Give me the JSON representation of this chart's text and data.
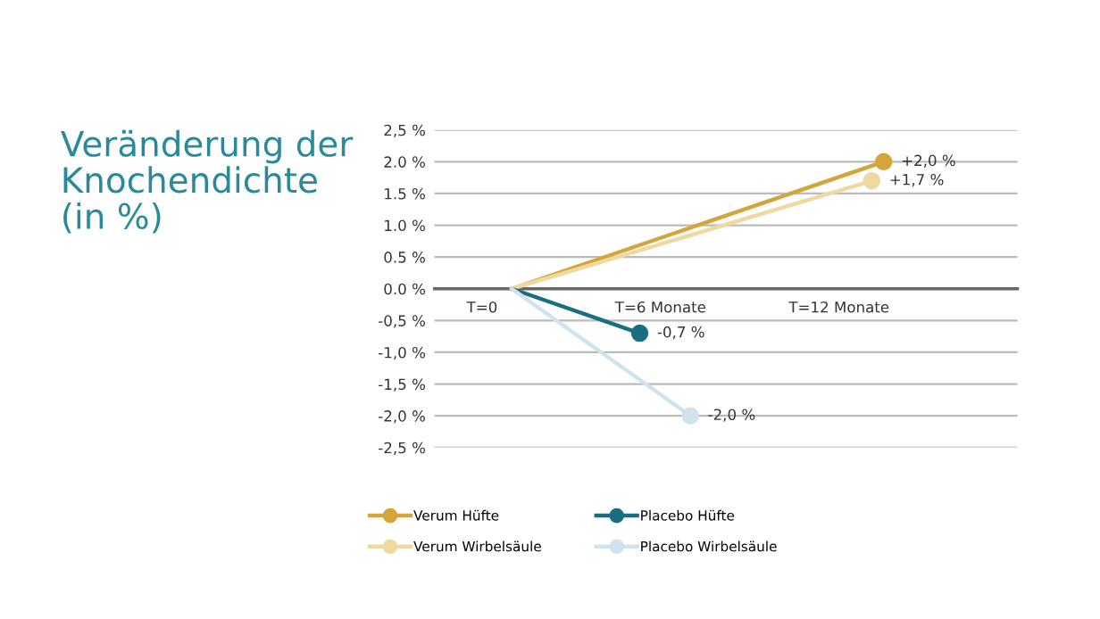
{
  "chart_data": {
    "type": "line",
    "title": "Veränderung der\nKnochendichte\n(in %)",
    "series": [
      {
        "name": "Verum Hüfte",
        "color": "#d4a53a",
        "x": [
          1,
          13.5
        ],
        "values": [
          0,
          2.0
        ],
        "value_labels": [
          null,
          "+2,0 %"
        ]
      },
      {
        "name": "Verum Wirbelsäule",
        "color": "#f0d9a0",
        "x": [
          1,
          13.1
        ],
        "values": [
          0,
          1.7
        ],
        "value_labels": [
          null,
          "+1,7 %"
        ]
      },
      {
        "name": "Placebo Hüfte",
        "color": "#1a6e82",
        "x": [
          1,
          5.3
        ],
        "values": [
          0,
          -0.7
        ],
        "value_labels": [
          null,
          "-0,7 %"
        ]
      },
      {
        "name": "Placebo Wirbelsäule",
        "color": "#cfe3ee",
        "x": [
          1,
          7.0
        ],
        "values": [
          0,
          -2.0
        ],
        "value_labels": [
          null,
          "-2,0 %"
        ]
      }
    ],
    "xlim": [
      -1.6,
      18
    ],
    "xticks": [
      {
        "value": 0,
        "label": "T=0"
      },
      {
        "value": 6,
        "label": "T=6 Monate"
      },
      {
        "value": 12,
        "label": "T=12 Monate"
      }
    ],
    "ylim": [
      -2.5,
      2.5
    ],
    "yticks": [
      {
        "value": 2.5,
        "label": "2,5 %"
      },
      {
        "value": 2.0,
        "label": "2.0 %"
      },
      {
        "value": 1.5,
        "label": "1.5 %"
      },
      {
        "value": 1.0,
        "label": "1.0 %"
      },
      {
        "value": 0.5,
        "label": "0.5 %"
      },
      {
        "value": 0.0,
        "label": "0.0 %"
      },
      {
        "value": -0.5,
        "label": "-0,5 %"
      },
      {
        "value": -1.0,
        "label": "-1,0 %"
      },
      {
        "value": -1.5,
        "label": "-1,5 %"
      },
      {
        "value": -2.0,
        "label": "-2,0 %"
      },
      {
        "value": -2.5,
        "label": "-2,5 %"
      }
    ],
    "grid": "y",
    "legend": "bottom",
    "marker": "circle",
    "line_style": "solid"
  }
}
